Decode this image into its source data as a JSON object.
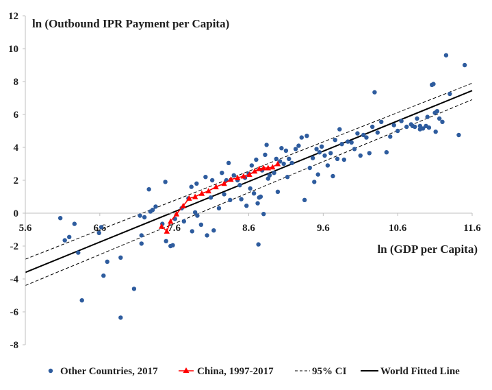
{
  "chart_data": {
    "type": "scatter",
    "ylabel": "ln (Outbound IPR Payment per Capita)",
    "xlabel": "ln (GDP per Capita)",
    "xlim": [
      5.6,
      11.6
    ],
    "ylim": [
      -8,
      12
    ],
    "x_ticks": [
      "5.6",
      "6.6",
      "7.6",
      "8.6",
      "9.6",
      "10.6",
      "11.6"
    ],
    "y_ticks": [
      "12",
      "10",
      "8",
      "6",
      "4",
      "2",
      "0",
      "-2",
      "-4",
      "-6",
      "-8"
    ],
    "legend_position": "bottom",
    "colors": {
      "other": "#2e5c9e",
      "china": "#ff0000",
      "fit": "#000000",
      "ci": "#000000"
    },
    "series": [
      {
        "name": "Other Countries, 2017",
        "kind": "scatter",
        "points": [
          [
            6.07,
            -0.3
          ],
          [
            6.13,
            -1.65
          ],
          [
            6.19,
            -1.45
          ],
          [
            6.26,
            -0.65
          ],
          [
            6.31,
            -2.4
          ],
          [
            6.36,
            -5.3
          ],
          [
            6.59,
            -1.2
          ],
          [
            6.62,
            -0.85
          ],
          [
            6.65,
            -3.8
          ],
          [
            6.7,
            -2.95
          ],
          [
            6.88,
            -6.35
          ],
          [
            6.88,
            -2.7
          ],
          [
            7.06,
            -4.6
          ],
          [
            7.14,
            -0.15
          ],
          [
            7.16,
            -1.35
          ],
          [
            7.16,
            -1.85
          ],
          [
            7.2,
            -0.25
          ],
          [
            7.26,
            1.45
          ],
          [
            7.28,
            0.1
          ],
          [
            7.31,
            0.2
          ],
          [
            7.35,
            0.4
          ],
          [
            7.44,
            -0.65
          ],
          [
            7.48,
            1.9
          ],
          [
            7.49,
            -1.7
          ],
          [
            7.55,
            -2.0
          ],
          [
            7.58,
            -1.95
          ],
          [
            7.61,
            -0.35
          ],
          [
            7.7,
            0.3
          ],
          [
            7.73,
            -0.5
          ],
          [
            7.79,
            0.9
          ],
          [
            7.83,
            1.6
          ],
          [
            7.84,
            -1.1
          ],
          [
            7.88,
            0.05
          ],
          [
            7.9,
            1.8
          ],
          [
            7.91,
            -0.15
          ],
          [
            7.96,
            -0.7
          ],
          [
            8.02,
            2.2
          ],
          [
            8.04,
            -1.35
          ],
          [
            8.09,
            0.95
          ],
          [
            8.11,
            2.0
          ],
          [
            8.13,
            -1.05
          ],
          [
            8.2,
            0.3
          ],
          [
            8.24,
            2.45
          ],
          [
            8.27,
            1.15
          ],
          [
            8.3,
            2.0
          ],
          [
            8.33,
            3.05
          ],
          [
            8.35,
            0.8
          ],
          [
            8.4,
            2.3
          ],
          [
            8.45,
            2.0
          ],
          [
            8.48,
            1.7
          ],
          [
            8.5,
            0.85
          ],
          [
            8.55,
            2.15
          ],
          [
            8.57,
            0.45
          ],
          [
            8.6,
            2.4
          ],
          [
            8.62,
            1.5
          ],
          [
            8.64,
            2.9
          ],
          [
            8.67,
            1.2
          ],
          [
            8.7,
            3.25
          ],
          [
            8.72,
            0.6
          ],
          [
            8.73,
            -1.9
          ],
          [
            8.74,
            0.95
          ],
          [
            8.76,
            1.0
          ],
          [
            8.78,
            2.6
          ],
          [
            8.8,
            -0.05
          ],
          [
            8.82,
            3.55
          ],
          [
            8.84,
            4.15
          ],
          [
            8.86,
            2.1
          ],
          [
            8.88,
            2.3
          ],
          [
            8.94,
            2.45
          ],
          [
            8.97,
            3.3
          ],
          [
            8.99,
            1.3
          ],
          [
            9.02,
            3.15
          ],
          [
            9.04,
            3.95
          ],
          [
            9.07,
            3.0
          ],
          [
            9.1,
            3.8
          ],
          [
            9.12,
            2.2
          ],
          [
            9.14,
            3.3
          ],
          [
            9.18,
            3.05
          ],
          [
            9.23,
            3.9
          ],
          [
            9.27,
            4.1
          ],
          [
            9.31,
            4.6
          ],
          [
            9.35,
            0.8
          ],
          [
            9.38,
            4.7
          ],
          [
            9.42,
            2.75
          ],
          [
            9.46,
            3.35
          ],
          [
            9.48,
            1.9
          ],
          [
            9.51,
            3.9
          ],
          [
            9.53,
            2.35
          ],
          [
            9.55,
            3.7
          ],
          [
            9.58,
            4.05
          ],
          [
            9.62,
            3.5
          ],
          [
            9.66,
            2.9
          ],
          [
            9.7,
            3.65
          ],
          [
            9.73,
            2.25
          ],
          [
            9.76,
            4.45
          ],
          [
            9.79,
            3.3
          ],
          [
            9.82,
            5.1
          ],
          [
            9.85,
            4.2
          ],
          [
            9.88,
            3.25
          ],
          [
            9.93,
            4.35
          ],
          [
            9.98,
            4.3
          ],
          [
            10.02,
            3.9
          ],
          [
            10.06,
            4.85
          ],
          [
            10.1,
            3.5
          ],
          [
            10.14,
            4.75
          ],
          [
            10.18,
            4.6
          ],
          [
            10.22,
            3.65
          ],
          [
            10.26,
            5.25
          ],
          [
            10.29,
            7.35
          ],
          [
            10.33,
            4.9
          ],
          [
            10.38,
            5.55
          ],
          [
            10.45,
            3.7
          ],
          [
            10.5,
            4.65
          ],
          [
            10.55,
            5.35
          ],
          [
            10.6,
            5.0
          ],
          [
            10.65,
            5.6
          ],
          [
            10.72,
            5.25
          ],
          [
            10.78,
            5.4
          ],
          [
            10.83,
            5.25
          ],
          [
            10.86,
            5.75
          ],
          [
            10.9,
            5.3
          ],
          [
            10.94,
            5.15
          ],
          [
            10.98,
            5.3
          ],
          [
            11.02,
            5.2
          ],
          [
            11.06,
            7.8
          ],
          [
            11.1,
            6.1
          ],
          [
            11.13,
            6.2
          ],
          [
            11.16,
            5.75
          ],
          [
            11.2,
            5.55
          ],
          [
            11.25,
            9.6
          ],
          [
            11.3,
            7.25
          ],
          [
            11.42,
            4.75
          ],
          [
            11.5,
            9.0
          ],
          [
            11.08,
            7.85
          ],
          [
            11.11,
            4.95
          ],
          [
            11.0,
            5.85
          ],
          [
            10.9,
            5.1
          ],
          [
            10.8,
            5.3
          ]
        ]
      },
      {
        "name": "China, 1997-2017",
        "kind": "line-marker",
        "points": [
          [
            7.43,
            -0.8
          ],
          [
            7.5,
            -1.1
          ],
          [
            7.55,
            -0.5
          ],
          [
            7.63,
            -0.05
          ],
          [
            7.72,
            0.45
          ],
          [
            7.8,
            0.9
          ],
          [
            7.88,
            1.0
          ],
          [
            7.97,
            1.2
          ],
          [
            8.06,
            1.35
          ],
          [
            8.16,
            1.6
          ],
          [
            8.27,
            1.8
          ],
          [
            8.36,
            2.05
          ],
          [
            8.45,
            2.15
          ],
          [
            8.53,
            2.25
          ],
          [
            8.61,
            2.35
          ],
          [
            8.68,
            2.55
          ],
          [
            8.74,
            2.7
          ],
          [
            8.8,
            2.75
          ],
          [
            8.86,
            2.75
          ],
          [
            8.92,
            2.8
          ],
          [
            8.99,
            3.0
          ]
        ]
      },
      {
        "name": "95% CI",
        "kind": "dashed",
        "upper": [
          [
            5.6,
            -2.8
          ],
          [
            11.6,
            7.9
          ]
        ],
        "lower": [
          [
            5.6,
            -4.4
          ],
          [
            11.6,
            6.9
          ]
        ]
      },
      {
        "name": "World Fitted Line",
        "kind": "line",
        "points": [
          [
            5.6,
            -3.6
          ],
          [
            11.6,
            7.45
          ]
        ]
      }
    ]
  }
}
